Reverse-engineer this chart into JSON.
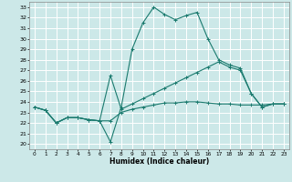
{
  "xlabel": "Humidex (Indice chaleur)",
  "xlim": [
    -0.5,
    23.5
  ],
  "ylim": [
    19.5,
    33.5
  ],
  "xticks": [
    0,
    1,
    2,
    3,
    4,
    5,
    6,
    7,
    8,
    9,
    10,
    11,
    12,
    13,
    14,
    15,
    16,
    17,
    18,
    19,
    20,
    21,
    22,
    23
  ],
  "yticks": [
    20,
    21,
    22,
    23,
    24,
    25,
    26,
    27,
    28,
    29,
    30,
    31,
    32,
    33
  ],
  "bg_color": "#cce8e8",
  "grid_color": "#ffffff",
  "line_color": "#1a7a6e",
  "line1": {
    "x": [
      0,
      1,
      2,
      3,
      4,
      5,
      6,
      7,
      8,
      9,
      10,
      11,
      12,
      13,
      14,
      15,
      16,
      17,
      18,
      19,
      20,
      21,
      22,
      23
    ],
    "y": [
      23.5,
      23.2,
      22.0,
      22.5,
      22.5,
      22.3,
      22.2,
      20.2,
      23.5,
      29.0,
      31.5,
      33.0,
      32.3,
      31.8,
      32.2,
      32.5,
      30.0,
      28.0,
      27.5,
      27.2,
      24.8,
      23.5,
      23.8,
      23.8
    ]
  },
  "line2": {
    "x": [
      0,
      1,
      2,
      3,
      4,
      5,
      6,
      7,
      8,
      9,
      10,
      11,
      12,
      13,
      14,
      15,
      16,
      17,
      18,
      19,
      20,
      21,
      22,
      23
    ],
    "y": [
      23.5,
      23.2,
      22.0,
      22.5,
      22.5,
      22.3,
      22.2,
      26.5,
      23.3,
      23.8,
      24.3,
      24.8,
      25.3,
      25.8,
      26.3,
      26.8,
      27.3,
      27.8,
      27.3,
      27.0,
      24.8,
      23.5,
      23.8,
      23.8
    ]
  },
  "line3": {
    "x": [
      0,
      1,
      2,
      3,
      4,
      5,
      6,
      7,
      8,
      9,
      10,
      11,
      12,
      13,
      14,
      15,
      16,
      17,
      18,
      19,
      20,
      21,
      22,
      23
    ],
    "y": [
      23.5,
      23.2,
      22.0,
      22.5,
      22.5,
      22.3,
      22.2,
      22.2,
      23.0,
      23.3,
      23.5,
      23.7,
      23.9,
      23.9,
      24.0,
      24.0,
      23.9,
      23.8,
      23.8,
      23.7,
      23.7,
      23.7,
      23.8,
      23.8
    ]
  }
}
